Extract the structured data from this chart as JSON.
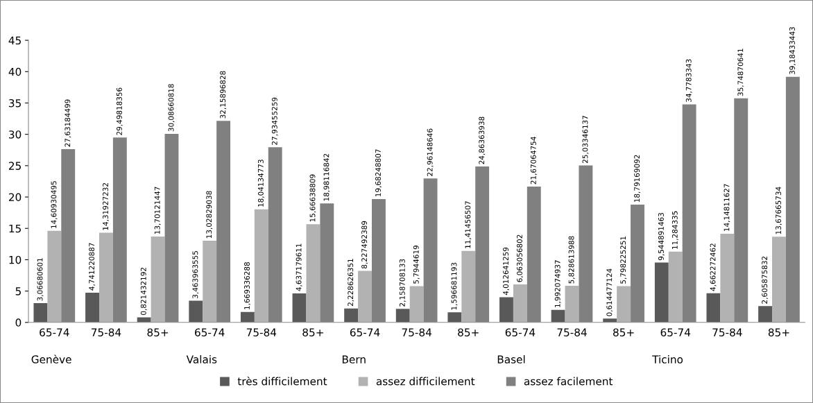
{
  "chart_data": {
    "type": "bar",
    "categories": [
      "65-74",
      "75-84",
      "85+",
      "65-74",
      "75-84",
      "85+",
      "65-74",
      "75-84",
      "85+",
      "65-74",
      "75-84",
      "85+",
      "65-74",
      "75-84",
      "85+"
    ],
    "annotations": [
      "Genève",
      "Valais",
      "Bern",
      "Basel",
      "Ticino"
    ],
    "series": [
      {
        "name": "très difficilement",
        "color": "#595959",
        "values": [
          3.06680601,
          4.741220887,
          0.821432192,
          3.463963555,
          1.669336288,
          4.637179611,
          2.228626351,
          2.158708133,
          1.596681193,
          4.012641259,
          1.992074937,
          0.614477124,
          9.544891463,
          4.662272462,
          2.605875832
        ],
        "value_labels": [
          "3,06680601",
          "4,741220887",
          "0,821432192",
          "3,463963555",
          "1,669336288",
          "4,637179611",
          "2,228626351",
          "2,158708133",
          "1,596681193",
          "4,012641259",
          "1,992074937",
          "0,614477124",
          "9,544891463",
          "4,662272462",
          "2,605875832"
        ]
      },
      {
        "name": "assez difficilement",
        "color": "#b2b2b2",
        "values": [
          14.60930495,
          14.31927232,
          13.70121447,
          13.02829038,
          18.04134773,
          15.66638809,
          8.227492389,
          5.7944619,
          11.41456507,
          6.063056802,
          5.828613988,
          5.798225251,
          11.284335,
          14.14811627,
          13.67665734
        ],
        "value_labels": [
          "14,60930495",
          "14,31927232",
          "13,70121447",
          "13,02829038",
          "18,04134773",
          "15,66638809",
          "8,227492389",
          "5,7944619",
          "11,41456507",
          "6,063056802",
          "5,828613988",
          "5,798225251",
          "11,284335",
          "14,14811627",
          "13,67665734"
        ]
      },
      {
        "name": "assez facilement",
        "color": "#808080",
        "values": [
          27.63184499,
          29.49818356,
          30.08660818,
          32.15896828,
          27.93455259,
          18.98116842,
          19.68248807,
          22.96148646,
          24.86363938,
          21.67064754,
          25.03346137,
          18.79169092,
          34.7783343,
          35.74870641,
          39.18433443
        ],
        "value_labels": [
          "27,63184499",
          "29,49818356",
          "30,08660818",
          "32,15896828",
          "27,93455259",
          "18,98116842",
          "19,68248807",
          "22,96148646",
          "24,86363938",
          "21,67064754",
          "25,03346137",
          "18,79169092",
          "34,7783343",
          "35,74870641",
          "39,18433443"
        ]
      }
    ],
    "ylim": [
      0,
      45
    ],
    "yticks": [
      0,
      5,
      10,
      15,
      20,
      25,
      30,
      35,
      40,
      45
    ],
    "grid": false,
    "legend": "bottom"
  }
}
